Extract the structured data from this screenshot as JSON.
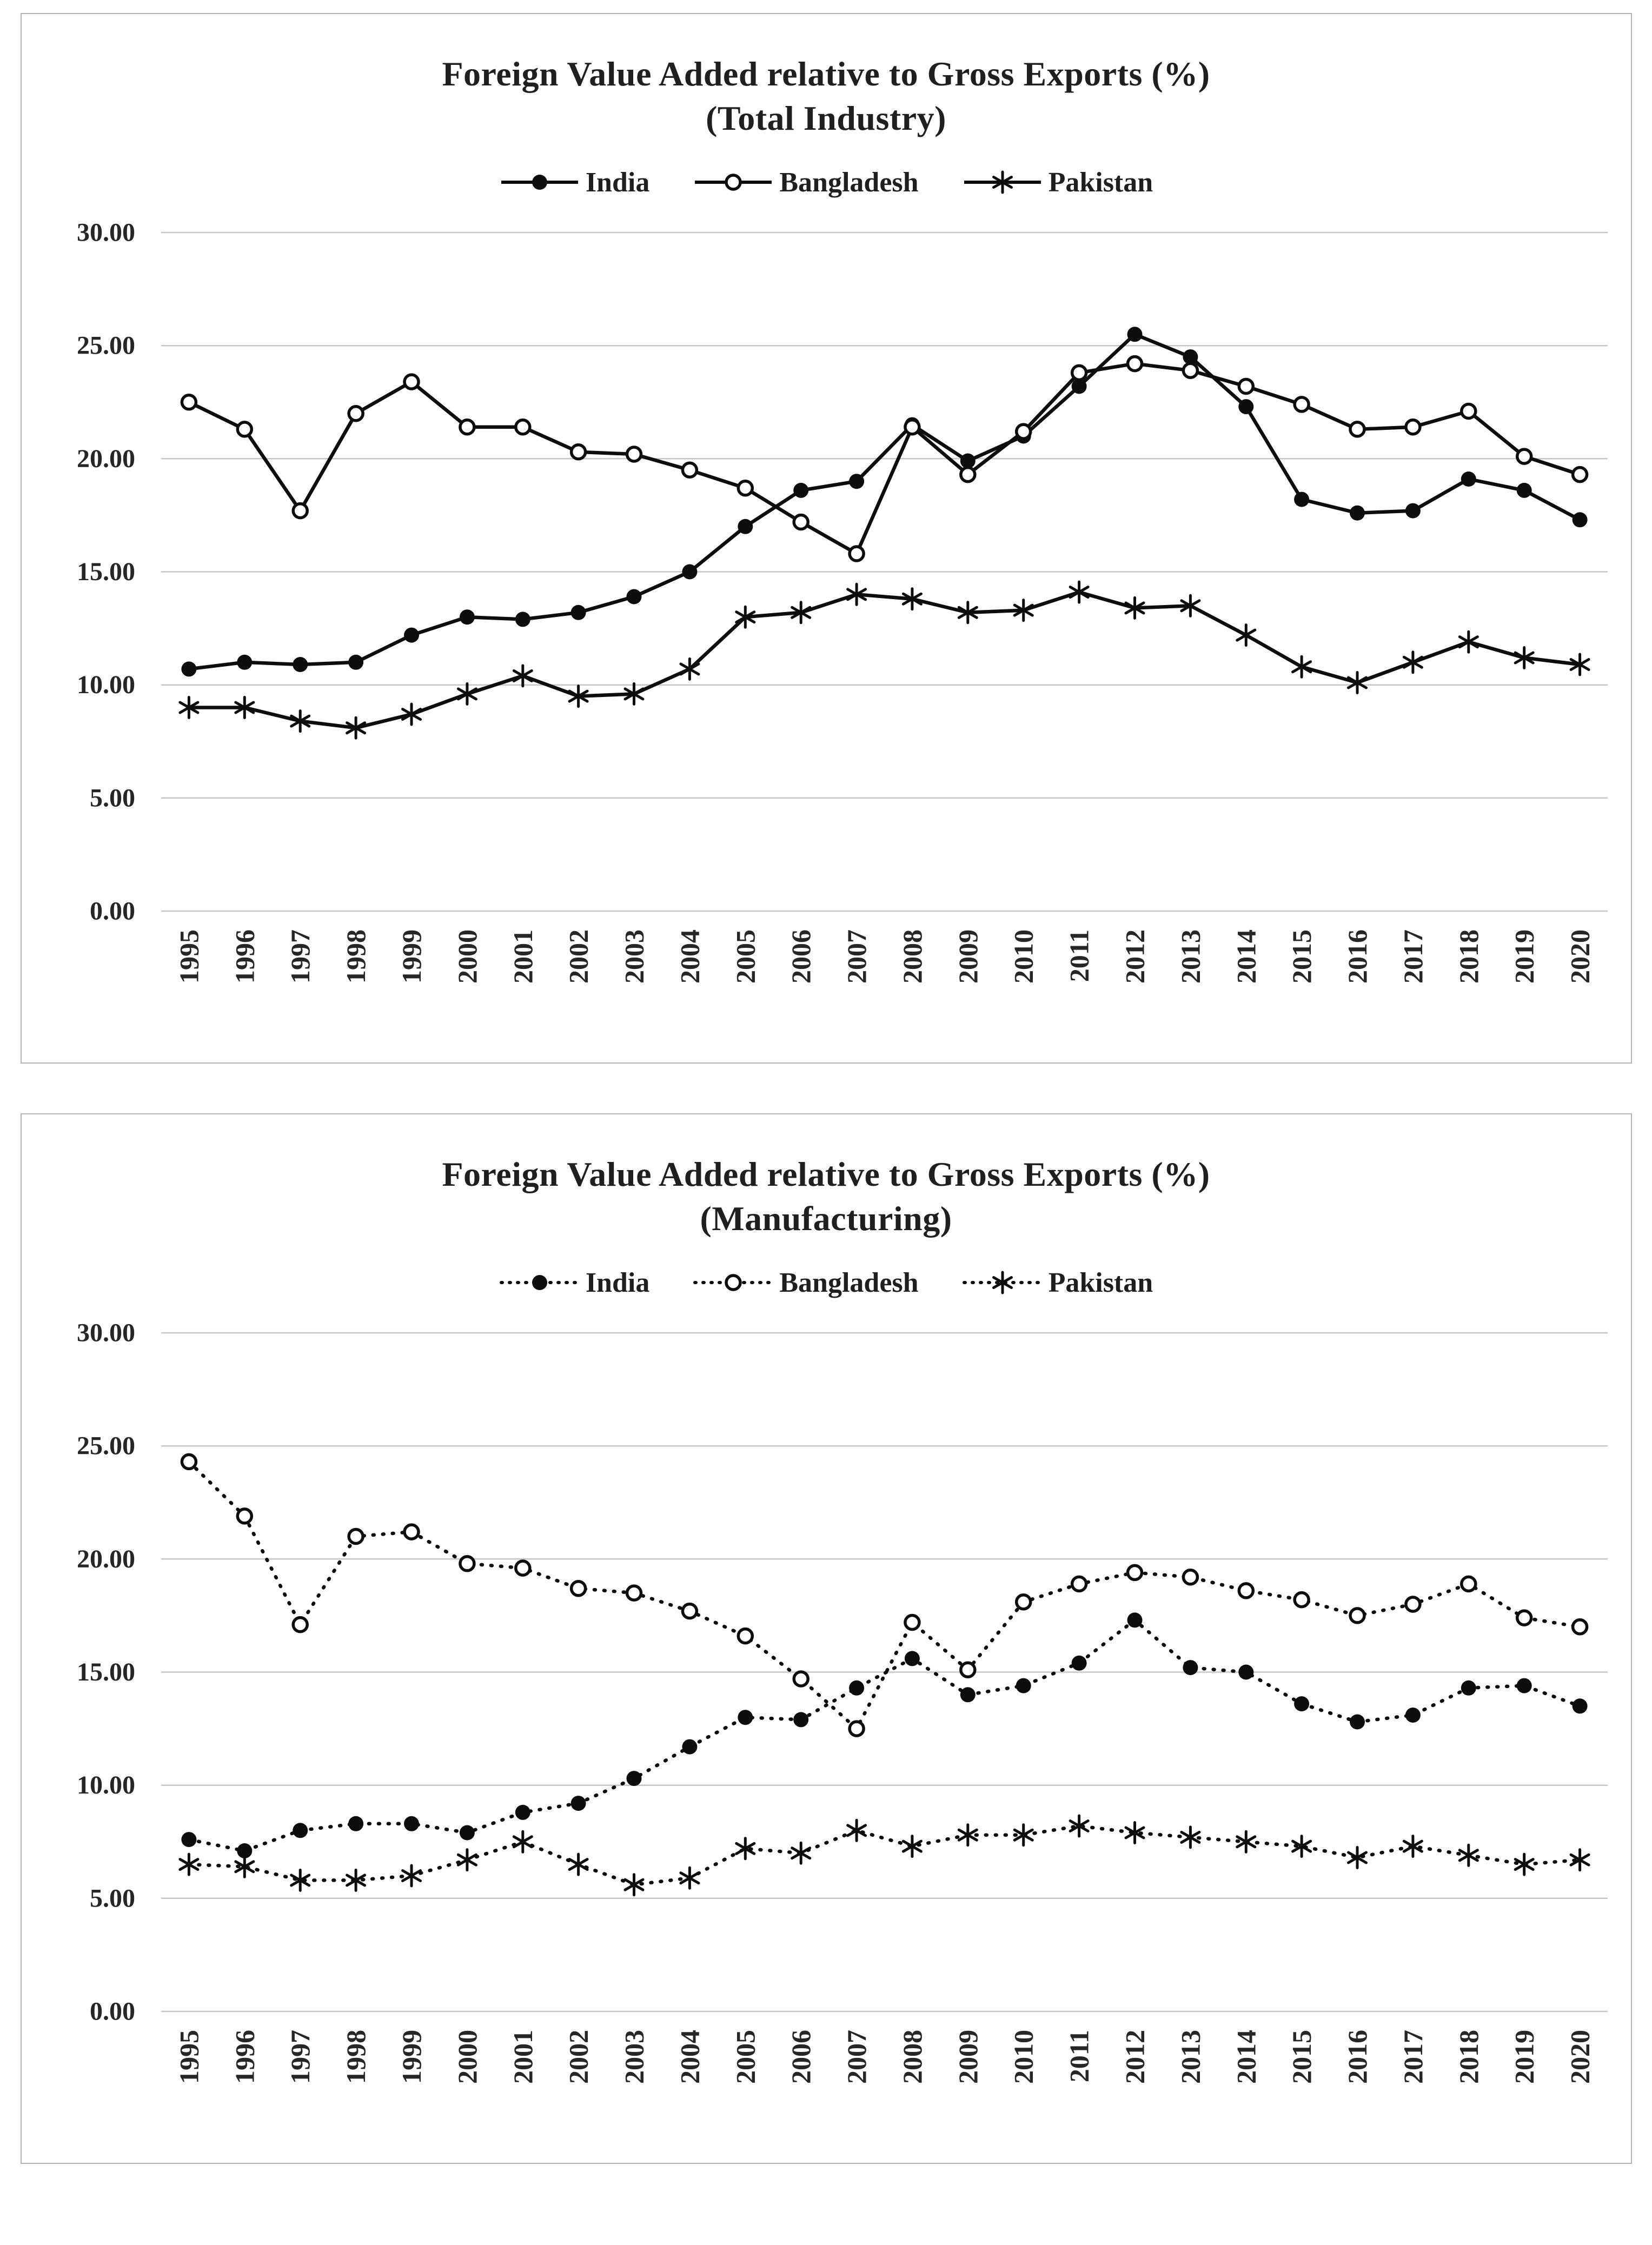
{
  "colors": {
    "ink": "#0d0d0d",
    "grid": "#c6c6c6",
    "panel_border": "#b3b3b3",
    "background": "#ffffff",
    "text": "#1f1f1f"
  },
  "chart_data": [
    {
      "type": "line",
      "title": "Foreign Value Added relative to Gross Exports (%)",
      "subtitle": "(Total Industry)",
      "xlabel": "",
      "ylabel": "",
      "ylim": [
        0,
        30
      ],
      "y_ticks": [
        "0.00",
        "5.00",
        "10.00",
        "15.00",
        "20.00",
        "25.00",
        "30.00"
      ],
      "grid": "horizontal",
      "legend_position": "top",
      "line_style": "solid",
      "categories": [
        "1995",
        "1996",
        "1997",
        "1998",
        "1999",
        "2000",
        "2001",
        "2002",
        "2003",
        "2004",
        "2005",
        "2006",
        "2007",
        "2008",
        "2009",
        "2010",
        "2011",
        "2012",
        "2013",
        "2014",
        "2015",
        "2016",
        "2017",
        "2018",
        "2019",
        "2020"
      ],
      "series": [
        {
          "name": "India",
          "marker": "filled-circle",
          "values": [
            10.7,
            11.0,
            10.9,
            11.0,
            12.2,
            13.0,
            12.9,
            13.2,
            13.9,
            15.0,
            17.0,
            18.6,
            19.0,
            21.5,
            19.9,
            21.0,
            23.2,
            25.5,
            24.5,
            22.3,
            18.2,
            17.6,
            17.7,
            19.1,
            18.6,
            17.3
          ]
        },
        {
          "name": "Bangladesh",
          "marker": "open-circle",
          "values": [
            22.5,
            21.3,
            17.7,
            22.0,
            23.4,
            21.4,
            21.4,
            20.3,
            20.2,
            19.5,
            18.7,
            17.2,
            15.8,
            21.4,
            19.3,
            21.2,
            23.8,
            24.2,
            23.9,
            23.2,
            22.4,
            21.3,
            21.4,
            22.1,
            20.1,
            19.3
          ]
        },
        {
          "name": "Pakistan",
          "marker": "asterisk",
          "values": [
            9.0,
            9.0,
            8.4,
            8.1,
            8.7,
            9.6,
            10.4,
            9.5,
            9.6,
            10.7,
            13.0,
            13.2,
            14.0,
            13.8,
            13.2,
            13.3,
            14.1,
            13.4,
            13.5,
            12.2,
            10.8,
            10.1,
            11.0,
            11.9,
            11.2,
            10.9
          ]
        }
      ]
    },
    {
      "type": "line",
      "title": "Foreign Value Added relative to Gross Exports (%)",
      "subtitle": "(Manufacturing)",
      "xlabel": "",
      "ylabel": "",
      "ylim": [
        0,
        30
      ],
      "y_ticks": [
        "0.00",
        "5.00",
        "10.00",
        "15.00",
        "20.00",
        "25.00",
        "30.00"
      ],
      "grid": "horizontal",
      "legend_position": "top",
      "line_style": "dotted",
      "categories": [
        "1995",
        "1996",
        "1997",
        "1998",
        "1999",
        "2000",
        "2001",
        "2002",
        "2003",
        "2004",
        "2005",
        "2006",
        "2007",
        "2008",
        "2009",
        "2010",
        "2011",
        "2012",
        "2013",
        "2014",
        "2015",
        "2016",
        "2017",
        "2018",
        "2019",
        "2020"
      ],
      "series": [
        {
          "name": "India",
          "marker": "filled-circle",
          "values": [
            7.6,
            7.1,
            8.0,
            8.3,
            8.3,
            7.9,
            8.8,
            9.2,
            10.3,
            11.7,
            13.0,
            12.9,
            14.3,
            15.6,
            14.0,
            14.4,
            15.4,
            17.3,
            15.2,
            15.0,
            13.6,
            12.8,
            13.1,
            14.3,
            14.4,
            13.5
          ]
        },
        {
          "name": "Bangladesh",
          "marker": "open-circle",
          "values": [
            24.3,
            21.9,
            17.1,
            21.0,
            21.2,
            19.8,
            19.6,
            18.7,
            18.5,
            17.7,
            16.6,
            14.7,
            12.5,
            17.2,
            15.1,
            18.1,
            18.9,
            19.4,
            19.2,
            18.6,
            18.2,
            17.5,
            18.0,
            18.9,
            17.4,
            17.0
          ]
        },
        {
          "name": "Pakistan",
          "marker": "asterisk",
          "values": [
            6.5,
            6.4,
            5.8,
            5.8,
            6.0,
            6.7,
            7.5,
            6.5,
            5.6,
            5.9,
            7.2,
            7.0,
            8.0,
            7.3,
            7.8,
            7.8,
            8.2,
            7.9,
            7.7,
            7.5,
            7.3,
            6.8,
            7.3,
            6.9,
            6.5,
            6.7
          ]
        }
      ]
    }
  ]
}
